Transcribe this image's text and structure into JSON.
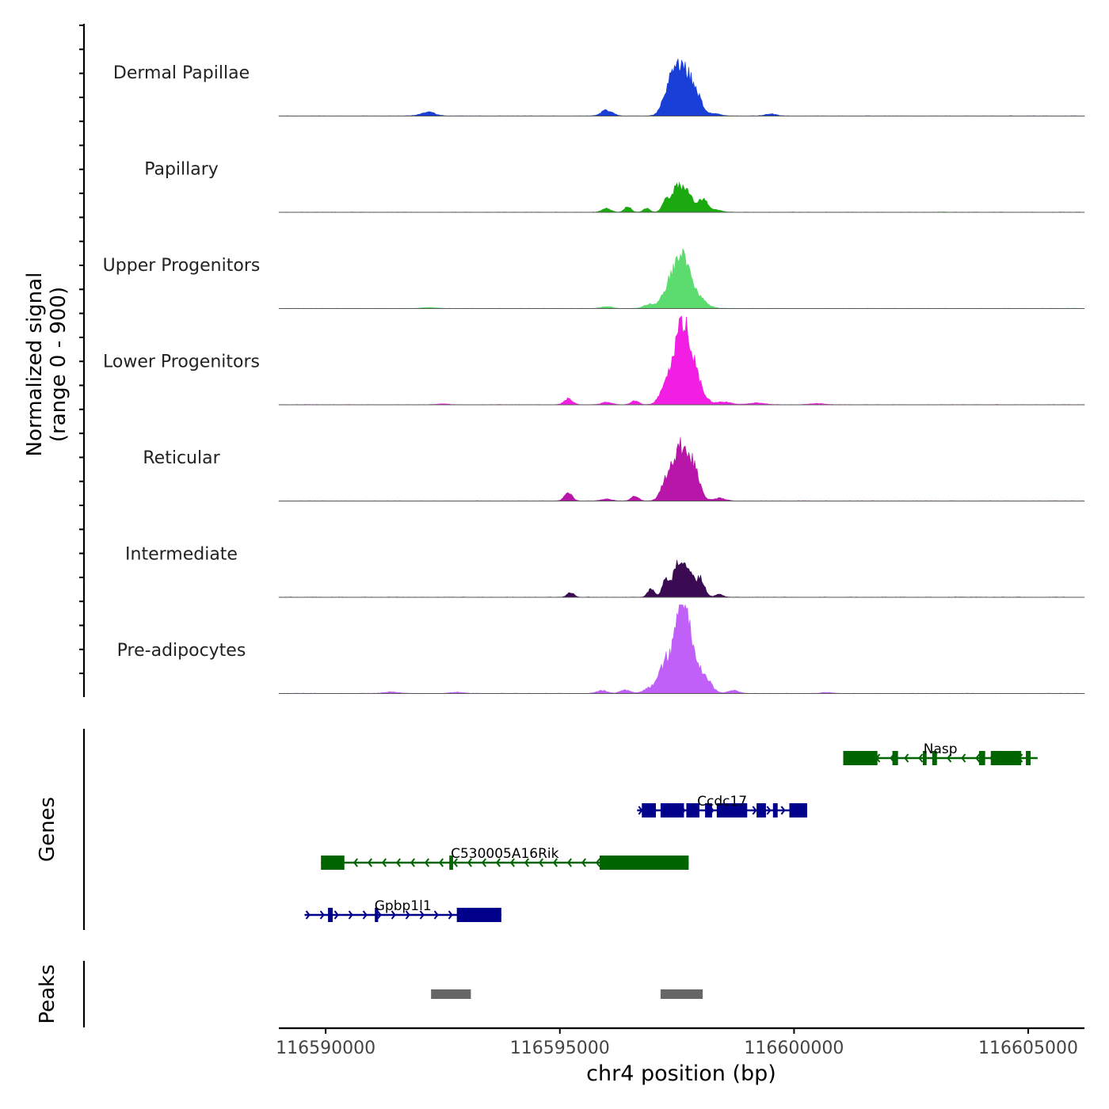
{
  "chart_data": {
    "type": "area",
    "title": "",
    "signal_ylabel": "Normalized signal",
    "signal_range_label": "(range 0 - 900)",
    "signal_range": [
      0,
      900
    ],
    "xlabel": "chr4 position (bp)",
    "xlim": [
      116589000,
      116606200
    ],
    "x_ticks": [
      116590000,
      116595000,
      116600000,
      116605000
    ],
    "x_tick_labels": [
      "116590000",
      "116595000",
      "116600000",
      "116605000"
    ],
    "tracks": [
      {
        "name": "Dermal Papillae",
        "color": "#1a3fd6",
        "peaks": [
          [
            116597580,
            520,
            190
          ],
          [
            116597300,
            150,
            120
          ],
          [
            116597900,
            180,
            130
          ],
          [
            116596000,
            60,
            120
          ],
          [
            116592180,
            40,
            150
          ],
          [
            116598300,
            25,
            120
          ],
          [
            116599500,
            20,
            120
          ]
        ]
      },
      {
        "name": "Papillary",
        "color": "#1aaa10",
        "peaks": [
          [
            116597530,
            280,
            130
          ],
          [
            116597260,
            110,
            80
          ],
          [
            116597760,
            140,
            90
          ],
          [
            116598050,
            130,
            110
          ],
          [
            116596000,
            40,
            90
          ],
          [
            116596450,
            60,
            70
          ],
          [
            116596850,
            40,
            70
          ],
          [
            116598350,
            20,
            120
          ]
        ]
      },
      {
        "name": "Upper Progenitors",
        "color": "#5cdc6e",
        "peaks": [
          [
            116597600,
            520,
            180
          ],
          [
            116597300,
            140,
            140
          ],
          [
            116597950,
            90,
            180
          ],
          [
            116596900,
            40,
            110
          ],
          [
            116592200,
            10,
            150
          ],
          [
            116596000,
            20,
            110
          ]
        ]
      },
      {
        "name": "Lower Progenitors",
        "color": "#f21ee3",
        "peaks": [
          [
            116597640,
            860,
            160
          ],
          [
            116597300,
            230,
            140
          ],
          [
            116597950,
            180,
            140
          ],
          [
            116595180,
            60,
            90
          ],
          [
            116596600,
            40,
            80
          ],
          [
            116596000,
            25,
            110
          ],
          [
            116598500,
            30,
            170
          ],
          [
            116599200,
            18,
            170
          ],
          [
            116600500,
            12,
            150
          ],
          [
            116592500,
            8,
            120
          ]
        ]
      },
      {
        "name": "Reticular",
        "color": "#b716a8",
        "peaks": [
          [
            116597600,
            560,
            170
          ],
          [
            116597280,
            180,
            120
          ],
          [
            116597880,
            220,
            120
          ],
          [
            116595180,
            90,
            80
          ],
          [
            116596600,
            50,
            80
          ],
          [
            116598400,
            30,
            120
          ],
          [
            116596000,
            20,
            110
          ]
        ]
      },
      {
        "name": "Intermediate",
        "color": "#3a0a52",
        "peaks": [
          [
            116597560,
            400,
            130
          ],
          [
            116597250,
            180,
            70
          ],
          [
            116596950,
            90,
            70
          ],
          [
            116598000,
            200,
            90
          ],
          [
            116597800,
            150,
            70
          ],
          [
            116595230,
            50,
            70
          ],
          [
            116598400,
            30,
            80
          ]
        ]
      },
      {
        "name": "Pre-adipocytes",
        "color": "#c060f8",
        "peaks": [
          [
            116597640,
            900,
            120
          ],
          [
            116597420,
            350,
            160
          ],
          [
            116597200,
            160,
            130
          ],
          [
            116597900,
            270,
            120
          ],
          [
            116598150,
            120,
            120
          ],
          [
            116596900,
            50,
            120
          ],
          [
            116596400,
            35,
            110
          ],
          [
            116595900,
            30,
            110
          ],
          [
            116598700,
            30,
            120
          ],
          [
            116591400,
            15,
            150
          ],
          [
            116592800,
            12,
            140
          ],
          [
            116600700,
            10,
            120
          ]
        ]
      }
    ],
    "genes_label": "Genes",
    "genes": [
      {
        "name": "Nasp",
        "strand": "-",
        "color": "#006400",
        "start": 116601050,
        "end": 116605200,
        "exons": [
          [
            116601050,
            116601780
          ],
          [
            116602100,
            116602220
          ],
          [
            116602750,
            116602830
          ],
          [
            116602950,
            116603050
          ],
          [
            116603950,
            116604080
          ],
          [
            116604200,
            116604850
          ],
          [
            116604950,
            116605050
          ]
        ]
      },
      {
        "name": "Ccdc17",
        "strand": "+",
        "color": "#00008b",
        "start": 116596650,
        "end": 116600280,
        "exons": [
          [
            116596750,
            116597050
          ],
          [
            116597150,
            116597650
          ],
          [
            116597700,
            116597980
          ],
          [
            116598100,
            116598250
          ],
          [
            116598350,
            116599000
          ],
          [
            116599200,
            116599400
          ],
          [
            116599550,
            116599650
          ],
          [
            116599900,
            116600280
          ]
        ]
      },
      {
        "name": "C530005A16Rik",
        "strand": "-",
        "color": "#006400",
        "start": 116589900,
        "end": 116597750,
        "exons": [
          [
            116589900,
            116590400
          ],
          [
            116592640,
            116592720
          ],
          [
            116595850,
            116597750
          ]
        ]
      },
      {
        "name": "Gpbp1l1",
        "strand": "+",
        "color": "#00008b",
        "start": 116589550,
        "end": 116593750,
        "exons": [
          [
            116590050,
            116590150
          ],
          [
            116591050,
            116591120
          ],
          [
            116592800,
            116593750
          ]
        ]
      }
    ],
    "peaks_label": "Peaks",
    "peak_regions": [
      [
        116592250,
        116593100
      ],
      [
        116597150,
        116598050
      ]
    ]
  }
}
